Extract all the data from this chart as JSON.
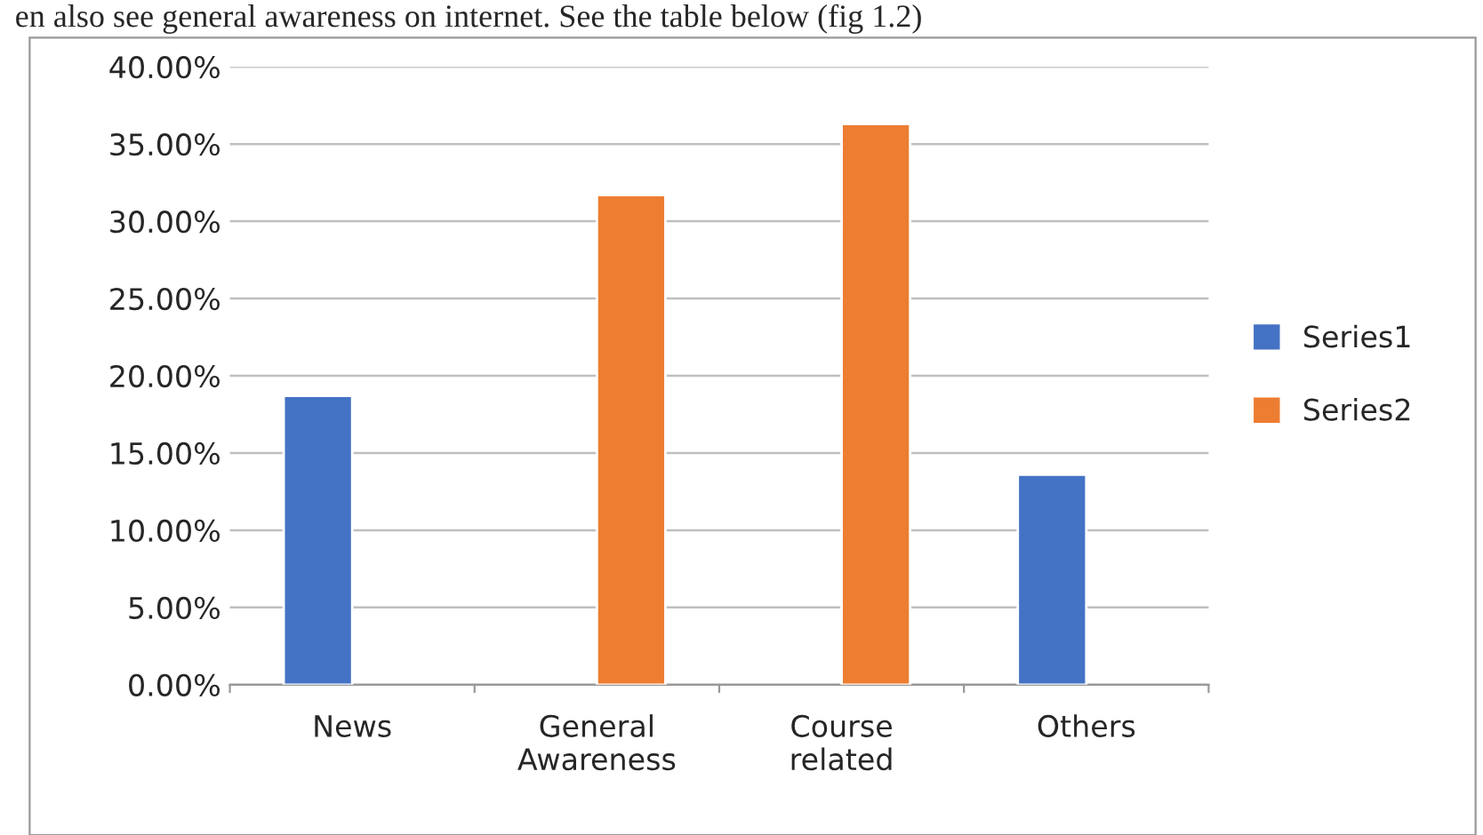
{
  "chart_data": {
    "type": "bar",
    "annotations": [
      "en also see general awareness on internet. See the table below (fig 1.2)"
    ],
    "categories": [
      "News",
      "General\nAwareness",
      "Course\nrelated",
      "Others"
    ],
    "series": [
      {
        "name": "Series1",
        "color": "#4472c4",
        "values": [
          18.7,
          null,
          null,
          13.6
        ]
      },
      {
        "name": "Series2",
        "color": "#ed7d31",
        "values": [
          null,
          31.7,
          36.3,
          null
        ]
      }
    ],
    "ylim": [
      0,
      40
    ],
    "yticks": [
      {
        "value": 0,
        "label": "0.00%"
      },
      {
        "value": 5,
        "label": "5.00%"
      },
      {
        "value": 10,
        "label": "10.00%"
      },
      {
        "value": 15,
        "label": "15.00%"
      },
      {
        "value": 20,
        "label": "20.00%"
      },
      {
        "value": 25,
        "label": "25.00%"
      },
      {
        "value": 30,
        "label": "30.00%"
      },
      {
        "value": 35,
        "label": "35.00%"
      },
      {
        "value": 40,
        "label": "40.00%"
      }
    ],
    "grid": "y",
    "legend": "right"
  }
}
